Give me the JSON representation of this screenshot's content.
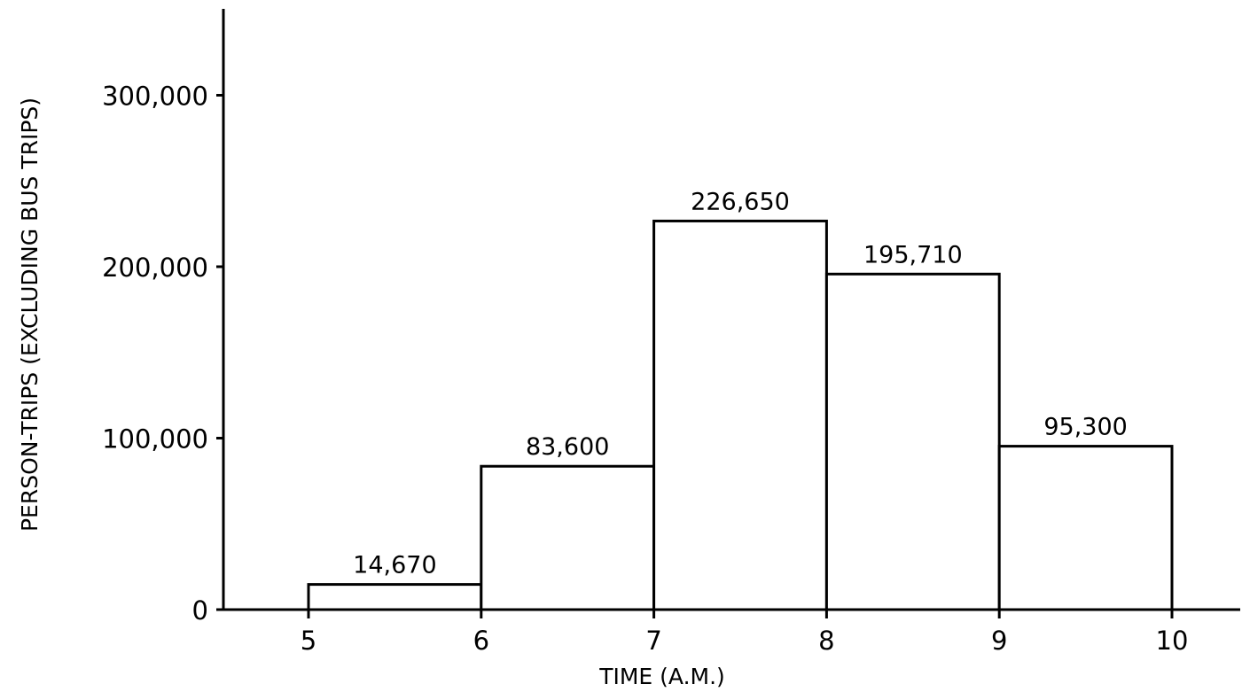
{
  "chart_data": {
    "type": "bar",
    "bin_edges": [
      5,
      6,
      7,
      8,
      9,
      10
    ],
    "values": [
      14670,
      83600,
      226650,
      195710,
      95300
    ],
    "value_labels": [
      "14,670",
      "83,600",
      "226,650",
      "195,710",
      "95,300"
    ],
    "x_ticks": [
      5,
      6,
      7,
      8,
      9,
      10
    ],
    "x_tick_labels": [
      "5",
      "6",
      "7",
      "8",
      "9",
      "10"
    ],
    "y_ticks": [
      0,
      100000,
      200000,
      300000
    ],
    "y_tick_labels": [
      "0",
      "100,000",
      "200,000",
      "300,000"
    ],
    "xlabel": "TIME (A.M.)",
    "ylabel": "PERSON-TRIPS (EXCLUDING BUS TRIPS)",
    "xlim": [
      4,
      10.4
    ],
    "ylim": [
      0,
      350000
    ],
    "grid": false,
    "legend": "none",
    "colors": {
      "bar_fill": "#ffffff",
      "bar_stroke": "#000000",
      "text": "#000000"
    }
  }
}
